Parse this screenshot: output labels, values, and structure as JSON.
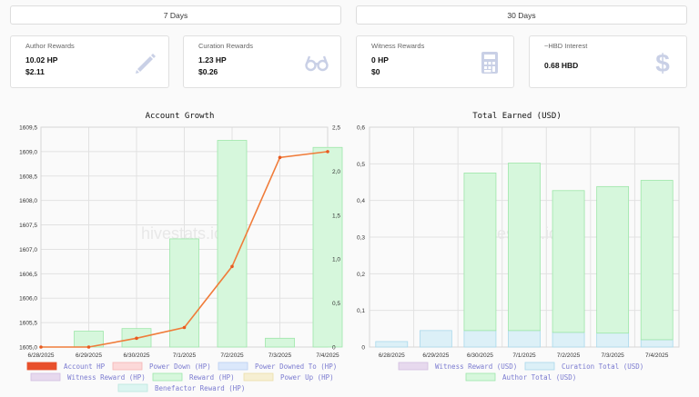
{
  "range_buttons": {
    "seven_days": "7 Days",
    "thirty_days": "30 Days"
  },
  "cards": {
    "author": {
      "title": "Author Rewards",
      "hp": "10.02 HP",
      "usd": "$2.11",
      "icon": "pencil-icon"
    },
    "curation": {
      "title": "Curation Rewards",
      "hp": "1.23 HP",
      "usd": "$0.26",
      "icon": "glasses-icon"
    },
    "witness": {
      "title": "Witness Rewards",
      "hp": "0 HP",
      "usd": "$0",
      "icon": "calculator-icon"
    },
    "hbd": {
      "title": "~HBD Interest",
      "value": "0.68 HBD",
      "icon": "dollar-icon"
    }
  },
  "colors": {
    "accent_line": "#f07c3a",
    "reward_fill": "#d6f7dc",
    "reward_stroke": "#9de6a9",
    "witness_fill": "#e7d9ee",
    "curation_fill": "#dcf0f7",
    "icon_gray": "#c9d0e6"
  },
  "chart_data": [
    {
      "type": "bar+line",
      "title": "Account Growth",
      "watermark": "hivestats.io",
      "categories": [
        "6/28/2025",
        "6/29/2025",
        "6/30/2025",
        "7/1/2025",
        "7/2/2025",
        "7/3/2025",
        "7/4/2025"
      ],
      "series": [
        {
          "name": "Account HP",
          "kind": "line",
          "axis": "left",
          "values": [
            1605.0,
            1605.0,
            1605.18,
            1605.4,
            1606.65,
            1608.88,
            1609.0
          ]
        },
        {
          "name": "Reward (HP)",
          "kind": "bar",
          "axis": "right",
          "values": [
            0,
            0.18,
            0.21,
            1.23,
            2.35,
            0.1,
            2.27
          ]
        },
        {
          "name": "Power Down (HP)",
          "kind": "bar",
          "axis": "right",
          "values": [
            0,
            0,
            0,
            0,
            0,
            0,
            0
          ]
        },
        {
          "name": "Power Downed To (HP)",
          "kind": "bar",
          "axis": "right",
          "values": [
            0,
            0,
            0,
            0,
            0,
            0,
            0
          ]
        },
        {
          "name": "Witness Reward (HP)",
          "kind": "bar",
          "axis": "right",
          "values": [
            0,
            0,
            0,
            0,
            0,
            0,
            0
          ]
        },
        {
          "name": "Power Up (HP)",
          "kind": "bar",
          "axis": "right",
          "values": [
            0,
            0,
            0,
            0,
            0,
            0,
            0
          ]
        },
        {
          "name": "Benefactor Reward (HP)",
          "kind": "bar",
          "axis": "right",
          "values": [
            0,
            0,
            0,
            0,
            0,
            0,
            0
          ]
        }
      ],
      "y_left": {
        "min": 1605.0,
        "max": 1609.5,
        "ticks": [
          "1605,0",
          "1605,5",
          "1606,0",
          "1606,5",
          "1607,0",
          "1607,5",
          "1608,0",
          "1608,5",
          "1609,0",
          "1609,5"
        ]
      },
      "y_right": {
        "min": 0,
        "max": 2.5,
        "ticks": [
          "0",
          "0,5",
          "1,0",
          "1,5",
          "2,0",
          "2,5"
        ]
      },
      "legend": [
        "Account HP",
        "Power Down (HP)",
        "Power Downed To (HP)",
        "Witness Reward (HP)",
        "Reward (HP)",
        "Power Up (HP)",
        "Benefactor Reward (HP)"
      ]
    },
    {
      "type": "stacked-bar",
      "title": "Total Earned (USD)",
      "watermark": "hivestats.io",
      "categories": [
        "6/28/2025",
        "6/29/2025",
        "6/30/2025",
        "7/1/2025",
        "7/2/2025",
        "7/3/2025",
        "7/4/2025"
      ],
      "series": [
        {
          "name": "Witness Reward (USD)",
          "values": [
            0,
            0,
            0,
            0,
            0,
            0,
            0
          ]
        },
        {
          "name": "Curation Total (USD)",
          "values": [
            0.015,
            0.045,
            0.045,
            0.045,
            0.04,
            0.038,
            0.02
          ]
        },
        {
          "name": "Author Total (USD)",
          "values": [
            0,
            0,
            0.43,
            0.457,
            0.387,
            0.4,
            0.435
          ]
        }
      ],
      "y": {
        "min": 0,
        "max": 0.6,
        "ticks": [
          "0",
          "0,1",
          "0,2",
          "0,3",
          "0,4",
          "0,5",
          "0,6"
        ]
      },
      "legend": [
        "Witness Reward (USD)",
        "Curation Total (USD)",
        "Author Total (USD)"
      ]
    }
  ]
}
